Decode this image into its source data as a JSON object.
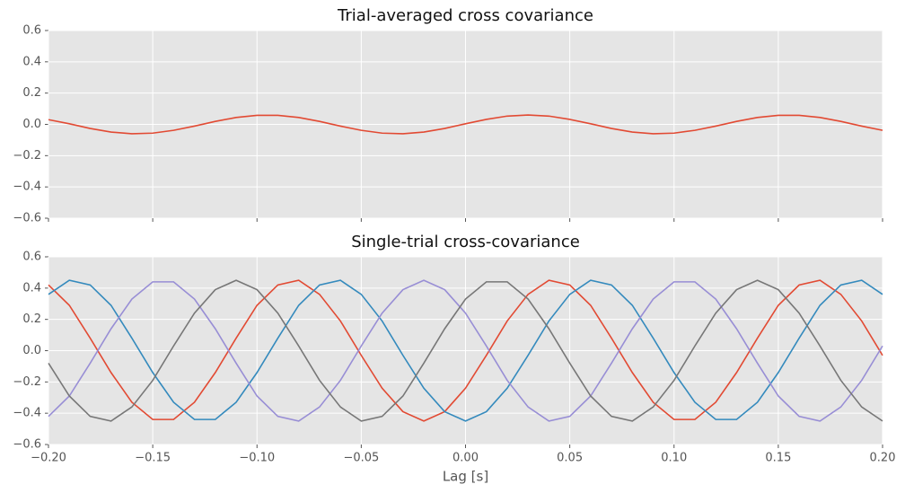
{
  "chart_data": [
    {
      "type": "line",
      "title": "Trial-averaged cross covariance",
      "grid": true,
      "background": "#e5e5e5",
      "x": [
        -0.2,
        -0.19,
        -0.18,
        -0.17,
        -0.16,
        -0.15,
        -0.14,
        -0.13,
        -0.12,
        -0.11,
        -0.1,
        -0.09,
        -0.08,
        -0.07,
        -0.06,
        -0.05,
        -0.04,
        -0.03,
        -0.02,
        -0.01,
        0,
        0.01,
        0.02,
        0.03,
        0.04,
        0.05,
        0.06,
        0.07,
        0.08,
        0.09,
        0.1,
        0.11,
        0.12,
        0.13,
        0.14,
        0.15,
        0.16,
        0.17,
        0.18,
        0.19,
        0.2
      ],
      "xlim": [
        -0.2,
        0.2
      ],
      "xticks": [
        -0.2,
        -0.15,
        -0.1,
        -0.05,
        0,
        0.05,
        0.1,
        0.15,
        0.2
      ],
      "ylim": [
        -0.6,
        0.6
      ],
      "yticks": [
        {
          "value": -0.6,
          "label": "−0.6"
        },
        {
          "value": -0.4,
          "label": "−0.4"
        },
        {
          "value": -0.2,
          "label": "−0.2"
        },
        {
          "value": 0,
          "label": "0.0"
        },
        0.2,
        0.4,
        0.6
      ],
      "series": [
        {
          "color": "#e24a33",
          "values": [
            0.03,
            0.004,
            -0.026,
            -0.049,
            -0.06,
            -0.056,
            -0.038,
            -0.011,
            0.019,
            0.044,
            0.058,
            0.058,
            0.044,
            0.019,
            -0.011,
            -0.038,
            -0.056,
            -0.06,
            -0.049,
            -0.026,
            0.004,
            0.032,
            0.053,
            0.06,
            0.053,
            0.032,
            0.004,
            -0.026,
            -0.049,
            -0.06,
            -0.056,
            -0.038,
            -0.011,
            0.019,
            0.044,
            0.058,
            0.058,
            0.044,
            0.019,
            -0.011,
            -0.038
          ]
        }
      ]
    },
    {
      "type": "line",
      "title": "Single-trial cross-covariance",
      "xlabel": "Lag [s]",
      "grid": true,
      "background": "#e5e5e5",
      "x": [
        -0.2,
        -0.19,
        -0.18,
        -0.17,
        -0.16,
        -0.15,
        -0.14,
        -0.13,
        -0.12,
        -0.11,
        -0.1,
        -0.09,
        -0.08,
        -0.07,
        -0.06,
        -0.05,
        -0.04,
        -0.03,
        -0.02,
        -0.01,
        0,
        0.01,
        0.02,
        0.03,
        0.04,
        0.05,
        0.06,
        0.07,
        0.08,
        0.09,
        0.1,
        0.11,
        0.12,
        0.13,
        0.14,
        0.15,
        0.16,
        0.17,
        0.18,
        0.19,
        0.2
      ],
      "xlim": [
        -0.2,
        0.2
      ],
      "xticks": [
        {
          "value": -0.2,
          "label": "−0.20"
        },
        {
          "value": -0.15,
          "label": "−0.15"
        },
        {
          "value": -0.1,
          "label": "−0.10"
        },
        {
          "value": -0.05,
          "label": "−0.05"
        },
        {
          "value": 0,
          "label": "0.00"
        },
        0.05,
        {
          "value": 0.1,
          "label": "0.10"
        },
        0.15,
        {
          "value": 0.2,
          "label": "0.20"
        }
      ],
      "ylim": [
        -0.6,
        0.6
      ],
      "yticks": [
        {
          "value": -0.6,
          "label": "−0.6"
        },
        {
          "value": -0.4,
          "label": "−0.4"
        },
        {
          "value": -0.2,
          "label": "−0.2"
        },
        {
          "value": 0,
          "label": "0.0"
        },
        0.2,
        0.4,
        0.6
      ],
      "series": [
        {
          "color": "#e24a33",
          "values": [
            0.42,
            0.29,
            0.08,
            -0.14,
            -0.33,
            -0.44,
            -0.44,
            -0.33,
            -0.14,
            0.08,
            0.29,
            0.42,
            0.45,
            0.36,
            0.19,
            -0.03,
            -0.24,
            -0.39,
            -0.45,
            -0.39,
            -0.24,
            -0.03,
            0.19,
            0.36,
            0.45,
            0.42,
            0.29,
            0.08,
            -0.14,
            -0.33,
            -0.44,
            -0.44,
            -0.33,
            -0.14,
            0.08,
            0.29,
            0.42,
            0.45,
            0.36,
            0.19,
            -0.03
          ]
        },
        {
          "color": "#348abd",
          "values": [
            0.36,
            0.45,
            0.42,
            0.29,
            0.08,
            -0.14,
            -0.33,
            -0.44,
            -0.44,
            -0.33,
            -0.14,
            0.08,
            0.29,
            0.42,
            0.45,
            0.36,
            0.19,
            -0.03,
            -0.24,
            -0.39,
            -0.45,
            -0.39,
            -0.24,
            -0.03,
            0.19,
            0.36,
            0.45,
            0.42,
            0.29,
            0.08,
            -0.14,
            -0.33,
            -0.44,
            -0.44,
            -0.33,
            -0.14,
            0.08,
            0.29,
            0.42,
            0.45,
            0.36
          ]
        },
        {
          "color": "#988ed5",
          "values": [
            -0.42,
            -0.29,
            -0.08,
            0.14,
            0.33,
            0.44,
            0.44,
            0.33,
            0.14,
            -0.08,
            -0.29,
            -0.42,
            -0.45,
            -0.36,
            -0.19,
            0.03,
            0.24,
            0.39,
            0.45,
            0.39,
            0.24,
            0.03,
            -0.19,
            -0.36,
            -0.45,
            -0.42,
            -0.29,
            -0.08,
            0.14,
            0.33,
            0.44,
            0.44,
            0.33,
            0.14,
            -0.08,
            -0.29,
            -0.42,
            -0.45,
            -0.36,
            -0.19,
            0.03
          ]
        },
        {
          "color": "#777777",
          "values": [
            -0.08,
            -0.29,
            -0.42,
            -0.45,
            -0.36,
            -0.19,
            0.03,
            0.24,
            0.39,
            0.45,
            0.39,
            0.24,
            0.03,
            -0.19,
            -0.36,
            -0.45,
            -0.42,
            -0.29,
            -0.08,
            0.14,
            0.33,
            0.44,
            0.44,
            0.33,
            0.14,
            -0.08,
            -0.29,
            -0.42,
            -0.45,
            -0.36,
            -0.19,
            0.03,
            0.24,
            0.39,
            0.45,
            0.39,
            0.24,
            0.03,
            -0.19,
            -0.36,
            -0.45
          ]
        }
      ]
    }
  ]
}
